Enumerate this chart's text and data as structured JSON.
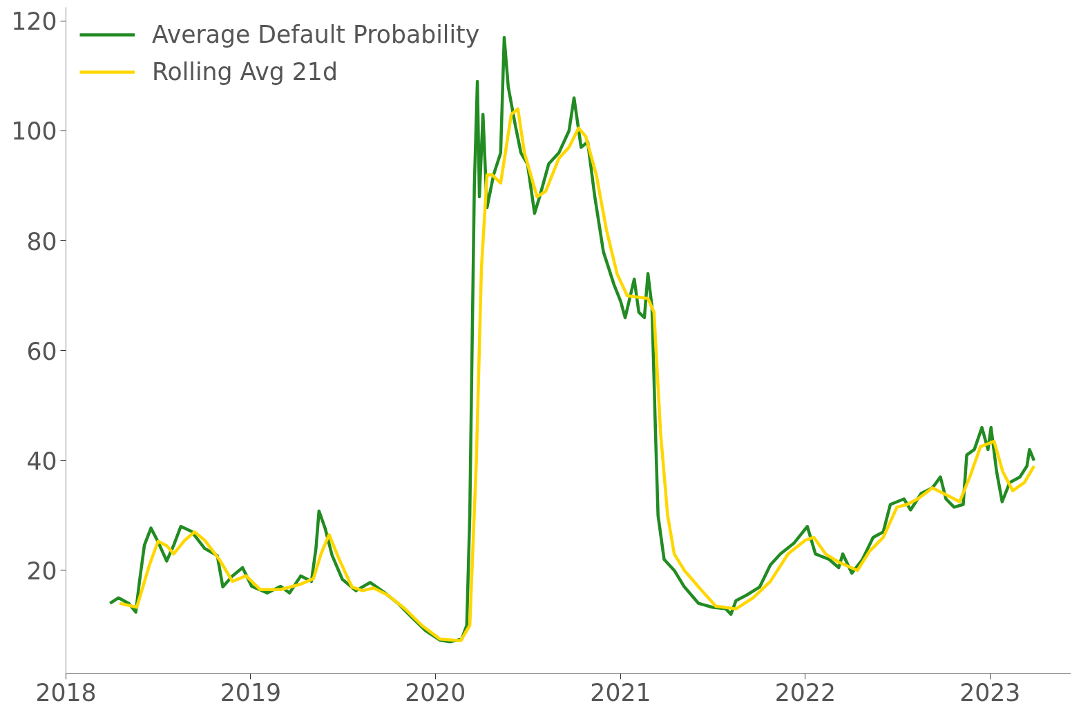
{
  "chart_data": {
    "type": "line",
    "xlim": [
      "2018-01-01",
      "2023-06-10"
    ],
    "ylim": [
      1.2,
      122.5
    ],
    "xticks": [
      {
        "value": "2018-01-01",
        "label": "2018"
      },
      {
        "value": "2019-01-01",
        "label": "2019"
      },
      {
        "value": "2020-01-01",
        "label": "2020"
      },
      {
        "value": "2021-01-01",
        "label": "2021"
      },
      {
        "value": "2022-01-01",
        "label": "2022"
      },
      {
        "value": "2023-01-01",
        "label": "2023"
      }
    ],
    "yticks": [
      20,
      40,
      60,
      80,
      100,
      120
    ],
    "grid": false,
    "legend": "top left",
    "line_style": "solid",
    "marker": "none",
    "series": [
      {
        "name": "Average Default Probability",
        "color": "#228b22",
        "x": [
          "2018-03-29",
          "2018-04-15",
          "2018-05-05",
          "2018-05-19",
          "2018-05-26",
          "2018-06-05",
          "2018-06-18",
          "2018-07-02",
          "2018-07-19",
          "2018-08-02",
          "2018-08-16",
          "2018-09-06",
          "2018-10-02",
          "2018-10-27",
          "2018-11-07",
          "2018-11-26",
          "2018-12-16",
          "2019-01-03",
          "2019-02-03",
          "2019-03-01",
          "2019-03-19",
          "2019-04-10",
          "2019-05-01",
          "2019-05-10",
          "2019-05-16",
          "2019-05-28",
          "2019-06-11",
          "2019-07-01",
          "2019-07-28",
          "2019-08-25",
          "2019-09-22",
          "2019-10-19",
          "2019-11-15",
          "2019-12-13",
          "2020-01-10",
          "2020-01-30",
          "2020-02-22",
          "2020-03-03",
          "2020-03-09",
          "2020-03-13",
          "2020-03-18",
          "2020-03-24",
          "2020-03-28",
          "2020-04-04",
          "2020-04-12",
          "2020-04-25",
          "2020-05-09",
          "2020-05-16",
          "2020-05-24",
          "2020-06-07",
          "2020-06-18",
          "2020-07-01",
          "2020-07-15",
          "2020-07-25",
          "2020-08-12",
          "2020-09-01",
          "2020-09-21",
          "2020-10-01",
          "2020-10-15",
          "2020-10-28",
          "2020-11-11",
          "2020-11-28",
          "2020-12-19",
          "2021-01-01",
          "2021-01-10",
          "2021-01-28",
          "2021-02-06",
          "2021-02-17",
          "2021-02-24",
          "2021-03-04",
          "2021-03-11",
          "2021-03-16",
          "2021-03-28",
          "2021-04-17",
          "2021-05-07",
          "2021-06-04",
          "2021-07-01",
          "2021-07-28",
          "2021-08-07",
          "2021-08-17",
          "2021-09-07",
          "2021-10-03",
          "2021-10-24",
          "2021-11-13",
          "2021-12-10",
          "2022-01-05",
          "2022-01-21",
          "2022-02-17",
          "2022-03-08",
          "2022-03-16",
          "2022-04-03",
          "2022-04-24",
          "2022-05-15",
          "2022-06-04",
          "2022-06-18",
          "2022-07-15",
          "2022-07-28",
          "2022-08-18",
          "2022-09-09",
          "2022-09-25",
          "2022-10-06",
          "2022-10-22",
          "2022-11-09",
          "2022-11-16",
          "2022-12-01",
          "2022-12-16",
          "2022-12-28",
          "2023-01-03",
          "2023-01-14",
          "2023-01-25",
          "2023-02-09",
          "2023-03-01",
          "2023-03-15",
          "2023-03-20",
          "2023-03-29"
        ],
        "values": [
          14,
          15,
          14,
          12.4,
          17.8,
          24.6,
          27.7,
          25.2,
          21.7,
          24.6,
          28,
          27.1,
          24,
          22.7,
          17,
          19,
          20.5,
          17.1,
          15.9,
          17.1,
          15.9,
          19,
          18,
          24,
          30.8,
          27.7,
          22.7,
          18.4,
          16.3,
          17.8,
          16,
          14,
          11.5,
          9,
          7.3,
          7,
          7.5,
          10,
          30,
          57,
          90,
          109,
          88,
          103,
          86,
          92,
          96,
          117,
          108,
          101,
          96,
          94,
          85,
          88,
          94,
          96,
          100,
          106,
          97,
          98,
          88,
          78,
          72,
          69,
          66,
          73,
          67,
          66,
          74,
          68,
          45,
          30,
          22,
          20,
          17,
          14,
          13.3,
          13,
          12,
          14.5,
          15.5,
          17,
          21,
          23,
          25,
          28,
          23,
          22,
          20.5,
          23,
          19.5,
          22,
          26,
          27,
          32,
          33,
          31,
          34,
          35,
          37,
          33,
          31.5,
          32,
          41,
          42,
          46,
          42,
          46,
          38,
          32.5,
          36,
          37,
          39,
          42,
          40
        ]
      },
      {
        "name": "Rolling Avg 21d",
        "color": "#ffd700",
        "x": [
          "2018-04-17",
          "2018-05-21",
          "2018-06-15",
          "2018-07-02",
          "2018-07-19",
          "2018-08-02",
          "2018-08-24",
          "2018-09-12",
          "2018-10-02",
          "2018-10-31",
          "2018-11-26",
          "2018-12-23",
          "2019-01-20",
          "2019-03-01",
          "2019-04-10",
          "2019-05-05",
          "2019-05-20",
          "2019-06-05",
          "2019-06-25",
          "2019-07-20",
          "2019-08-10",
          "2019-09-01",
          "2019-09-29",
          "2019-11-02",
          "2019-12-05",
          "2020-01-10",
          "2020-02-20",
          "2020-03-09",
          "2020-03-22",
          "2020-04-01",
          "2020-04-12",
          "2020-04-22",
          "2020-05-09",
          "2020-05-30",
          "2020-06-12",
          "2020-06-25",
          "2020-07-20",
          "2020-08-06",
          "2020-09-01",
          "2020-09-21",
          "2020-10-10",
          "2020-10-24",
          "2020-11-14",
          "2020-12-04",
          "2020-12-25",
          "2021-01-14",
          "2021-02-24",
          "2021-03-08",
          "2021-03-21",
          "2021-04-04",
          "2021-04-17",
          "2021-05-07",
          "2021-06-04",
          "2021-07-08",
          "2021-08-17",
          "2021-09-20",
          "2021-10-24",
          "2021-11-28",
          "2022-01-01",
          "2022-01-18",
          "2022-02-10",
          "2022-03-08",
          "2022-04-14",
          "2022-05-08",
          "2022-06-04",
          "2022-07-01",
          "2022-07-21",
          "2022-08-11",
          "2022-09-09",
          "2022-10-12",
          "2022-11-02",
          "2022-11-22",
          "2022-12-13",
          "2023-01-09",
          "2023-01-26",
          "2023-02-15",
          "2023-03-10",
          "2023-03-29"
        ],
        "values": [
          14,
          13.3,
          21,
          25.3,
          24.5,
          23,
          25.5,
          27,
          25.5,
          22,
          18,
          19,
          16.5,
          16.5,
          17.5,
          18.5,
          23,
          26.5,
          22,
          17,
          16.3,
          16.8,
          15.5,
          13,
          10,
          7.5,
          7.2,
          10,
          40,
          75,
          92,
          92,
          90.5,
          103,
          104,
          96,
          88,
          89,
          95,
          97,
          100.5,
          99,
          92,
          82,
          74,
          70,
          69.5,
          67,
          45,
          30,
          23,
          20,
          17,
          13.5,
          13,
          15,
          18,
          23,
          25.5,
          26,
          23,
          21.5,
          20,
          23.5,
          26,
          31.5,
          32,
          33,
          35,
          33.5,
          32.5,
          37,
          42.5,
          43.5,
          38,
          34.5,
          36,
          39
        ]
      }
    ]
  }
}
